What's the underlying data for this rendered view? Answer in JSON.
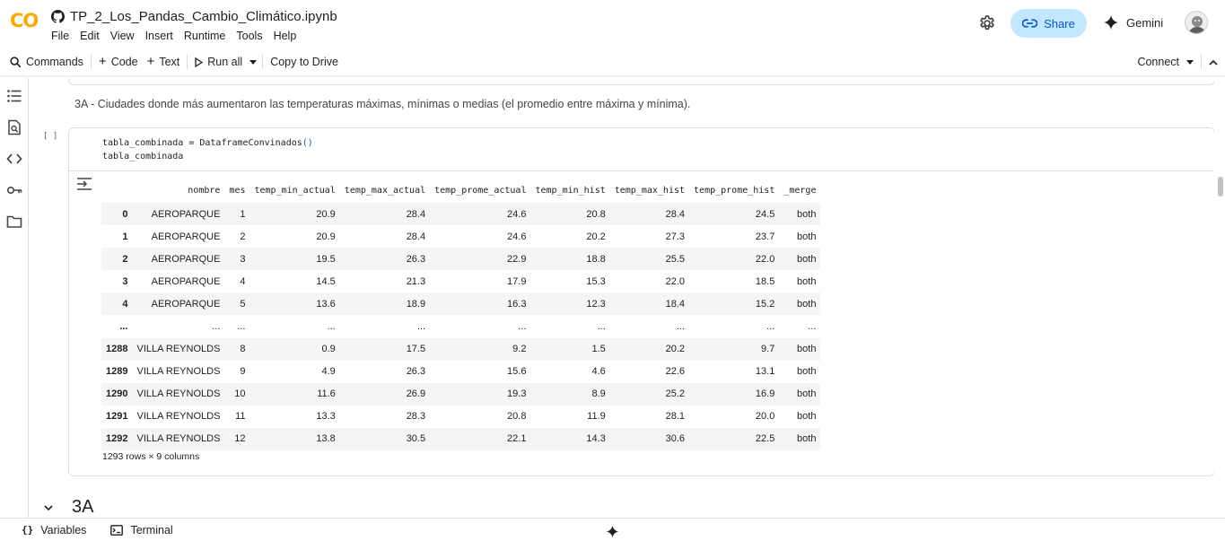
{
  "header": {
    "logo": "CO",
    "title": "TP_2_Los_Pandas_Cambio_Climático.ipynb",
    "menu": [
      "File",
      "Edit",
      "View",
      "Insert",
      "Runtime",
      "Tools",
      "Help"
    ],
    "share_label": "Share",
    "gemini_label": "Gemini"
  },
  "toolbar": {
    "commands": "Commands",
    "code": "Code",
    "text": "Text",
    "run_all": "Run all",
    "copy_to_drive": "Copy to Drive",
    "connect": "Connect"
  },
  "markdown_text": "3A - Ciudades donde más aumentaron las temperaturas máximas, mínimas o medias (el promedio entre máxima y mínima).",
  "cell": {
    "run_marker": "[ ]",
    "code_line1_a": "tabla_combinada = DataframeConvinados",
    "code_line1_b": "()",
    "code_line2": "tabla_combinada"
  },
  "dataframe": {
    "columns": [
      "",
      "nombre",
      "mes",
      "temp_min_actual",
      "temp_max_actual",
      "temp_prome_actual",
      "temp_min_hist",
      "temp_max_hist",
      "temp_prome_hist",
      "_merge"
    ],
    "rows": [
      [
        "0",
        "AEROPARQUE",
        "1",
        "20.9",
        "28.4",
        "24.6",
        "20.8",
        "28.4",
        "24.5",
        "both"
      ],
      [
        "1",
        "AEROPARQUE",
        "2",
        "20.9",
        "28.4",
        "24.6",
        "20.2",
        "27.3",
        "23.7",
        "both"
      ],
      [
        "2",
        "AEROPARQUE",
        "3",
        "19.5",
        "26.3",
        "22.9",
        "18.8",
        "25.5",
        "22.0",
        "both"
      ],
      [
        "3",
        "AEROPARQUE",
        "4",
        "14.5",
        "21.3",
        "17.9",
        "15.3",
        "22.0",
        "18.5",
        "both"
      ],
      [
        "4",
        "AEROPARQUE",
        "5",
        "13.6",
        "18.9",
        "16.3",
        "12.3",
        "18.4",
        "15.2",
        "both"
      ],
      [
        "...",
        "...",
        "...",
        "...",
        "...",
        "...",
        "...",
        "...",
        "...",
        "..."
      ],
      [
        "1288",
        "VILLA REYNOLDS",
        "8",
        "0.9",
        "17.5",
        "9.2",
        "1.5",
        "20.2",
        "9.7",
        "both"
      ],
      [
        "1289",
        "VILLA REYNOLDS",
        "9",
        "4.9",
        "26.3",
        "15.6",
        "4.6",
        "22.6",
        "13.1",
        "both"
      ],
      [
        "1290",
        "VILLA REYNOLDS",
        "10",
        "11.6",
        "26.9",
        "19.3",
        "8.9",
        "25.2",
        "16.9",
        "both"
      ],
      [
        "1291",
        "VILLA REYNOLDS",
        "11",
        "13.3",
        "28.3",
        "20.8",
        "11.9",
        "28.1",
        "20.0",
        "both"
      ],
      [
        "1292",
        "VILLA REYNOLDS",
        "12",
        "13.8",
        "30.5",
        "22.1",
        "14.3",
        "30.6",
        "22.5",
        "both"
      ]
    ],
    "shape": "1293 rows × 9 columns"
  },
  "section_title": "3A",
  "statusbar": {
    "variables": "Variables",
    "terminal": "Terminal"
  },
  "colors": {
    "logo": "#f9ab00",
    "share_bg": "#c2e7ff",
    "share_fg": "#0b57d0"
  }
}
